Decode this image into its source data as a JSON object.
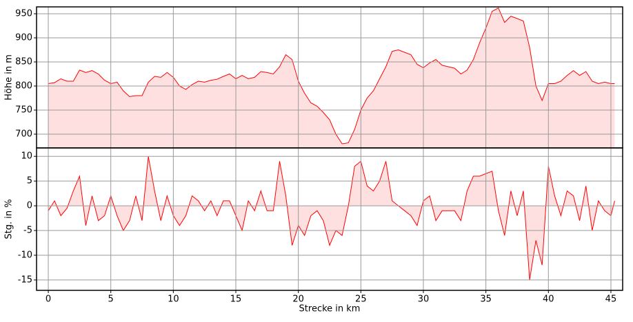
{
  "chart_data": [
    {
      "type": "area",
      "ylabel": "Höhe in m",
      "x": [
        0,
        0.5,
        1,
        1.5,
        2,
        2.5,
        3,
        3.5,
        4,
        4.5,
        5,
        5.5,
        6,
        6.5,
        7,
        7.5,
        8,
        8.5,
        9,
        9.5,
        10,
        10.5,
        11,
        11.5,
        12,
        12.5,
        13,
        13.5,
        14,
        14.5,
        15,
        15.5,
        16,
        16.5,
        17,
        17.5,
        18,
        18.5,
        19,
        19.5,
        20,
        20.5,
        21,
        21.5,
        22,
        22.5,
        23,
        23.5,
        24,
        24.5,
        25,
        25.5,
        26,
        26.5,
        27,
        27.5,
        28,
        28.5,
        29,
        29.5,
        30,
        30.5,
        31,
        31.5,
        32,
        32.5,
        33,
        33.5,
        34,
        34.5,
        35,
        35.5,
        36,
        36.5,
        37,
        37.5,
        38,
        38.5,
        39,
        39.5,
        40,
        40.5,
        41,
        41.5,
        42,
        42.5,
        43,
        43.5,
        44,
        44.5,
        45,
        45.3
      ],
      "series": [
        {
          "color": "#ff0000",
          "fill": "#ffe0e0",
          "values": [
            805,
            807,
            815,
            810,
            810,
            833,
            828,
            832,
            825,
            812,
            805,
            808,
            790,
            778,
            780,
            780,
            808,
            820,
            818,
            828,
            818,
            800,
            793,
            803,
            810,
            808,
            812,
            814,
            820,
            825,
            815,
            822,
            815,
            818,
            830,
            828,
            825,
            840,
            865,
            855,
            810,
            785,
            765,
            758,
            745,
            730,
            700,
            680,
            682,
            710,
            750,
            775,
            790,
            815,
            840,
            872,
            875,
            870,
            865,
            845,
            838,
            848,
            855,
            843,
            840,
            837,
            825,
            833,
            855,
            890,
            920,
            955,
            962,
            932,
            945,
            940,
            935,
            880,
            800,
            770,
            805,
            805,
            810,
            822,
            832,
            822,
            830,
            810,
            805,
            808,
            805,
            805
          ]
        }
      ],
      "xlim": [
        -0.94,
        45.94
      ],
      "ylim": [
        671.4,
        964.3
      ],
      "xticks": [
        0,
        5,
        10,
        15,
        20,
        25,
        30,
        35,
        40,
        45
      ],
      "yticks": [
        700,
        750,
        800,
        850,
        900,
        950
      ],
      "grid": true
    },
    {
      "type": "area",
      "ylabel": "Stg. in %",
      "xlabel": "Strecke in km",
      "x": [
        0,
        0.5,
        1,
        1.5,
        2,
        2.5,
        3,
        3.5,
        4,
        4.5,
        5,
        5.5,
        6,
        6.5,
        7,
        7.5,
        8,
        8.5,
        9,
        9.5,
        10,
        10.5,
        11,
        11.5,
        12,
        12.5,
        13,
        13.5,
        14,
        14.5,
        15,
        15.5,
        16,
        16.5,
        17,
        17.5,
        18,
        18.5,
        19,
        19.5,
        20,
        20.5,
        21,
        21.5,
        22,
        22.5,
        23,
        23.5,
        24,
        24.5,
        25,
        25.5,
        26,
        26.5,
        27,
        27.5,
        28,
        28.5,
        29,
        29.5,
        30,
        30.5,
        31,
        31.5,
        32,
        32.5,
        33,
        33.5,
        34,
        34.5,
        35,
        35.5,
        36,
        36.5,
        37,
        37.5,
        38,
        38.5,
        39,
        39.5,
        40,
        40.5,
        41,
        41.5,
        42,
        42.5,
        43,
        43.5,
        44,
        44.5,
        45,
        45.3
      ],
      "series": [
        {
          "color": "#ff0000",
          "fill": "#ffe0e0",
          "values": [
            -1,
            1,
            -2,
            -0.5,
            3,
            6,
            -4,
            2,
            -3,
            -2,
            2,
            -2,
            -5,
            -3,
            2,
            -3,
            10,
            3,
            -3,
            2,
            -2,
            -4,
            -2,
            2,
            1,
            -1,
            1,
            -2,
            1,
            1,
            -2,
            -5,
            1,
            -1,
            3,
            -1,
            -1,
            9,
            2,
            -8,
            -4,
            -6,
            -2,
            -1,
            -3,
            -8,
            -5,
            -6,
            0,
            8,
            9,
            4,
            3,
            5,
            9,
            1,
            0,
            -1,
            -2,
            -4,
            1,
            2,
            -3,
            -1,
            -1,
            -1,
            -3,
            3,
            6,
            6,
            6.5,
            7,
            -1,
            -6,
            3,
            -2,
            3,
            -15,
            -7,
            -12,
            8,
            2,
            -2,
            3,
            2,
            -3,
            4,
            -5,
            1,
            -1,
            -2,
            1
          ]
        }
      ],
      "xlim": [
        -0.94,
        45.94
      ],
      "ylim": [
        -17.1,
        11.7
      ],
      "xticks": [
        0,
        5,
        10,
        15,
        20,
        25,
        30,
        35,
        40,
        45
      ],
      "yticks": [
        -15,
        -10,
        -5,
        0,
        5,
        10
      ],
      "grid": true
    }
  ]
}
